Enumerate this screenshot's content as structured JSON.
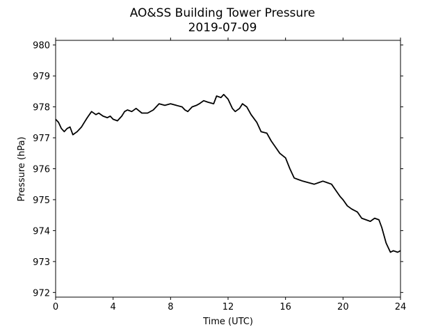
{
  "chart_data": {
    "type": "line",
    "title": "AO&SS Building Tower Pressure",
    "subtitle": "2019-07-09",
    "xlabel": "Time (UTC)",
    "ylabel": "Pressure (hPa)",
    "xlim": [
      0,
      24
    ],
    "ylim": [
      971.85,
      980.15
    ],
    "x_ticks": [
      0,
      4,
      8,
      12,
      16,
      20,
      24
    ],
    "y_ticks": [
      972,
      973,
      974,
      975,
      976,
      977,
      978,
      979,
      980
    ],
    "grid": false,
    "line_color": "#000000",
    "series": [
      {
        "x": [
          0,
          0.2,
          0.4,
          0.6,
          0.8,
          1.0,
          1.2,
          1.5,
          1.8,
          2.0,
          2.2,
          2.5,
          2.8,
          3.0,
          3.3,
          3.6,
          3.8,
          4.0,
          4.3,
          4.6,
          4.8,
          5.0,
          5.3,
          5.6,
          6.0,
          6.4,
          6.8,
          7.2,
          7.6,
          8.0,
          8.4,
          8.8,
          9.0,
          9.2,
          9.5,
          9.8,
          10.0,
          10.3,
          10.6,
          11.0,
          11.2,
          11.5,
          11.7,
          12.0,
          12.3,
          12.5,
          12.8,
          13.0,
          13.3,
          13.6,
          14.0,
          14.3,
          14.7,
          15.0,
          15.3,
          15.6,
          16.0,
          16.3,
          16.6,
          16.9,
          17.2,
          17.6,
          18.0,
          18.3,
          18.6,
          18.9,
          19.2,
          19.5,
          19.8,
          20.0,
          20.3,
          20.6,
          21.0,
          21.3,
          21.6,
          21.9,
          22.2,
          22.5,
          22.7,
          23.0,
          23.3,
          23.5,
          23.8,
          24.0
        ],
        "values": [
          977.6,
          977.5,
          977.3,
          977.2,
          977.3,
          977.35,
          977.1,
          977.2,
          977.35,
          977.5,
          977.65,
          977.85,
          977.75,
          977.8,
          977.7,
          977.65,
          977.7,
          977.6,
          977.55,
          977.7,
          977.85,
          977.9,
          977.85,
          977.95,
          977.8,
          977.8,
          977.9,
          978.1,
          978.05,
          978.1,
          978.05,
          978.0,
          977.9,
          977.85,
          978.0,
          978.05,
          978.1,
          978.2,
          978.15,
          978.1,
          978.35,
          978.3,
          978.4,
          978.25,
          977.95,
          977.85,
          977.95,
          978.1,
          978.0,
          977.75,
          977.5,
          977.2,
          977.15,
          976.9,
          976.7,
          976.5,
          976.35,
          976.0,
          975.7,
          975.65,
          975.6,
          975.55,
          975.5,
          975.55,
          975.6,
          975.55,
          975.5,
          975.3,
          975.1,
          975.0,
          974.8,
          974.7,
          974.6,
          974.4,
          974.35,
          974.3,
          974.4,
          974.35,
          974.1,
          973.6,
          973.3,
          973.35,
          973.3,
          973.35
        ]
      }
    ]
  }
}
